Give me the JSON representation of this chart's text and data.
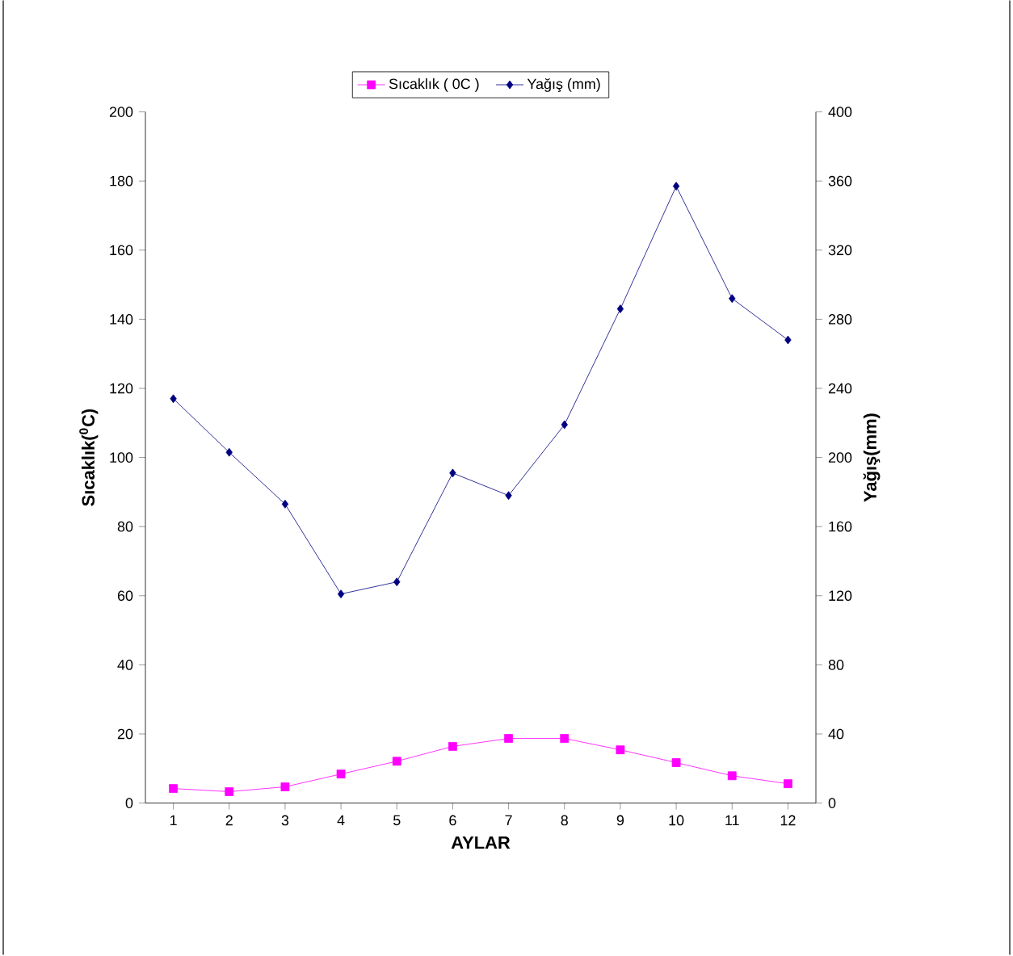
{
  "chart_data": {
    "type": "line",
    "xlabel": "AYLAR",
    "ylabel": "Sıcaklık($^{0}$C)",
    "y2label": "Yağış(mm)",
    "categories": [
      "1",
      "2",
      "3",
      "4",
      "5",
      "6",
      "7",
      "8",
      "9",
      "10",
      "11",
      "12"
    ],
    "series": [
      {
        "name": "Sıcaklık ( 0C )",
        "color": "#ff00ff",
        "marker": "square",
        "values": [
          4.2,
          3.3,
          4.7,
          8.4,
          12.1,
          16.4,
          18.7,
          18.7,
          15.4,
          11.7,
          7.9,
          5.6
        ]
      },
      {
        "name": "Yağış (mm)",
        "color": "#000080",
        "marker": "diamond",
        "axis": "y2",
        "values": [
          234,
          203,
          173,
          121,
          128,
          191,
          178,
          219,
          286,
          357,
          292,
          268
        ]
      }
    ],
    "ylim": [
      0,
      200
    ],
    "yticks": [
      0,
      20,
      40,
      60,
      80,
      100,
      120,
      140,
      160,
      180,
      200
    ],
    "y2lim": [
      0,
      400
    ],
    "y2ticks": [
      0,
      40,
      80,
      120,
      160,
      200,
      240,
      280,
      320,
      360,
      400
    ],
    "legend": "top",
    "grid": false
  }
}
